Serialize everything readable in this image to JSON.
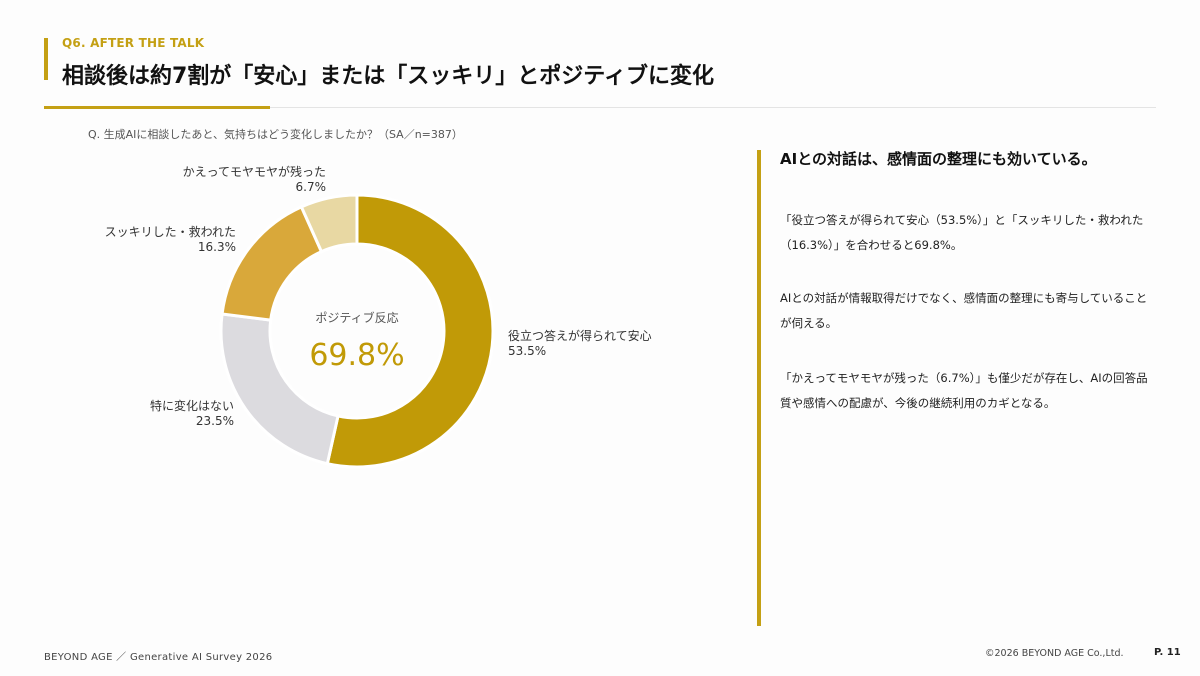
{
  "header": {
    "eyebrow": "Q6. AFTER THE TALK",
    "title": "相談後は約7割が「安心」または「スッキリ」とポジティブに変化"
  },
  "question": "Q. 生成AIに相談したあと、気持ちはどう変化しましたか？（SA／n=387）",
  "chart_data": {
    "type": "pie",
    "donut": true,
    "center_label": "ポジティブ反応",
    "center_value": "69.8%",
    "slices": [
      {
        "label": "役立つ答えが得られて安心",
        "value": 53.5,
        "display": "53.5%",
        "color": "#c19a07"
      },
      {
        "label": "特に変化はない",
        "value": 23.5,
        "display": "23.5%",
        "color": "#dcdbdf"
      },
      {
        "label": "スッキリした・救われた",
        "value": 16.3,
        "display": "16.3%",
        "color": "#d9a83a"
      },
      {
        "label": "かえってモヤモヤが残った",
        "value": 6.7,
        "display": "6.7%",
        "color": "#e8d8a3"
      }
    ],
    "start": "12 o'clock",
    "direction": "clockwise"
  },
  "side": {
    "heading": "AIとの対話は、感情面の整理にも効いている。",
    "paragraphs": [
      "「役立つ答えが得られて安心（53.5%）」と「スッキリした・救われた（16.3%）」を合わせると69.8%。",
      "AIとの対話が情報取得だけでなく、感情面の整理にも寄与していることが伺える。",
      "「かえってモヤモヤが残った（6.7%）」も僅少だが存在し、AIの回答品質や感情への配慮が、今後の継続利用のカギとなる。"
    ]
  },
  "footer": {
    "left": "BEYOND AGE ／ Generative AI Survey 2026",
    "copyright": "©2026 BEYOND AGE Co.,Ltd.",
    "page": "P. 11"
  }
}
